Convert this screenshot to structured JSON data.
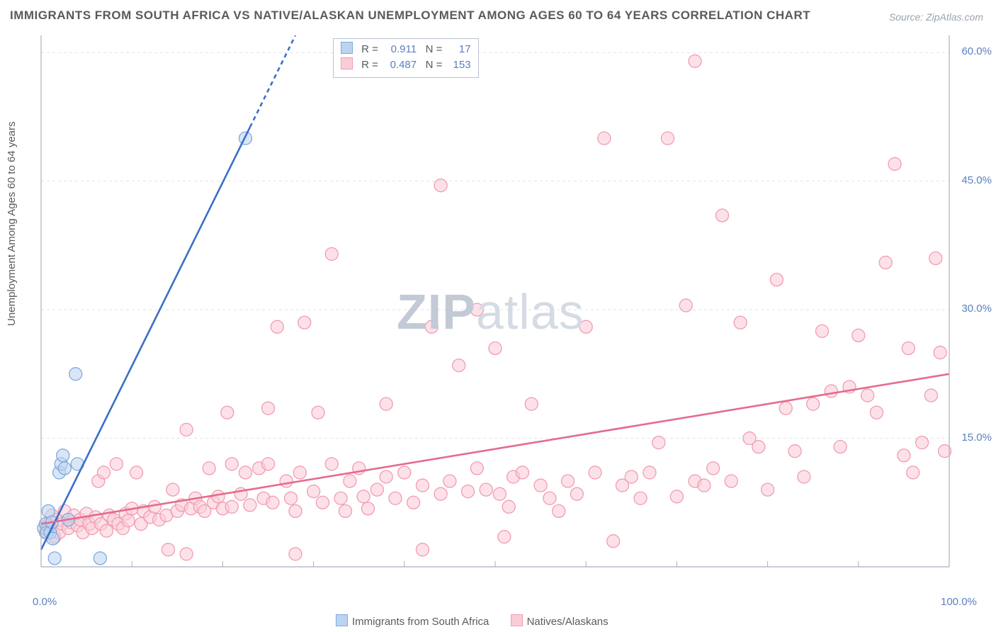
{
  "title": "IMMIGRANTS FROM SOUTH AFRICA VS NATIVE/ALASKAN UNEMPLOYMENT AMONG AGES 60 TO 64 YEARS CORRELATION CHART",
  "source": "Source: ZipAtlas.com",
  "ylabel": "Unemployment Among Ages 60 to 64 years",
  "watermark_a": "ZIP",
  "watermark_b": "atlas",
  "axes": {
    "xmin": 0,
    "xmax": 100,
    "ymin": 0,
    "ymax": 62,
    "xticks": [
      {
        "v": 0,
        "label": "0.0%"
      },
      {
        "v": 100,
        "label": "100.0%"
      }
    ],
    "yticks": [
      {
        "v": 15,
        "label": "15.0%"
      },
      {
        "v": 30,
        "label": "30.0%"
      },
      {
        "v": 45,
        "label": "45.0%"
      },
      {
        "v": 60,
        "label": "60.0%"
      }
    ],
    "xminor": [
      10,
      20,
      30,
      40,
      50,
      60,
      70,
      80,
      90
    ],
    "grid_color": "#e0e4ea",
    "axis_color": "#a9b1be"
  },
  "series": [
    {
      "name": "Immigrants from South Africa",
      "color_fill": "#bcd4f0",
      "color_stroke": "#7fa9dd",
      "line_color": "#3a6fc7",
      "R": "0.911",
      "N": "17",
      "trend": {
        "x1": 0,
        "y1": 2,
        "x2": 28,
        "y2": 62,
        "dash_from_x": 23
      },
      "points": [
        [
          0.3,
          4.5
        ],
        [
          0.5,
          5
        ],
        [
          0.6,
          4
        ],
        [
          0.8,
          6.5
        ],
        [
          1,
          4
        ],
        [
          1.2,
          5.2
        ],
        [
          1.3,
          3.3
        ],
        [
          1.5,
          1
        ],
        [
          2,
          11
        ],
        [
          2.2,
          12
        ],
        [
          2.4,
          13
        ],
        [
          2.6,
          11.5
        ],
        [
          3,
          5.5
        ],
        [
          3.8,
          22.5
        ],
        [
          4,
          12
        ],
        [
          6.5,
          1
        ],
        [
          22.5,
          50
        ]
      ]
    },
    {
      "name": "Natives/Alaskans",
      "color_fill": "#f9cdd7",
      "color_stroke": "#f29bb1",
      "line_color": "#e56b8c",
      "R": "0.487",
      "N": "153",
      "trend": {
        "x1": 0,
        "y1": 5,
        "x2": 100,
        "y2": 22.5
      },
      "points": [
        [
          0.5,
          4
        ],
        [
          0.8,
          5
        ],
        [
          1,
          4.5
        ],
        [
          1.2,
          6
        ],
        [
          1.5,
          3.5
        ],
        [
          1.8,
          5.5
        ],
        [
          2,
          4
        ],
        [
          2.3,
          5
        ],
        [
          2.6,
          6.5
        ],
        [
          3,
          4.5
        ],
        [
          3.3,
          5.2
        ],
        [
          3.6,
          6
        ],
        [
          4,
          4.8
        ],
        [
          4.3,
          5.5
        ],
        [
          4.6,
          4
        ],
        [
          5,
          6.2
        ],
        [
          5.3,
          5
        ],
        [
          5.6,
          4.5
        ],
        [
          6,
          5.8
        ],
        [
          6.3,
          10
        ],
        [
          6.6,
          5
        ],
        [
          6.9,
          11
        ],
        [
          7.2,
          4.2
        ],
        [
          7.5,
          6
        ],
        [
          8,
          5.5
        ],
        [
          8.3,
          12
        ],
        [
          8.5,
          5
        ],
        [
          9,
          4.5
        ],
        [
          9.3,
          6.2
        ],
        [
          9.6,
          5.4
        ],
        [
          10,
          6.8
        ],
        [
          10.5,
          11
        ],
        [
          11,
          5
        ],
        [
          11.3,
          6.5
        ],
        [
          12,
          5.8
        ],
        [
          12.5,
          7
        ],
        [
          13,
          5.5
        ],
        [
          13.8,
          6
        ],
        [
          14,
          2
        ],
        [
          14.5,
          9
        ],
        [
          15,
          6.5
        ],
        [
          15.5,
          7.2
        ],
        [
          16,
          16
        ],
        [
          16,
          1.5
        ],
        [
          16.5,
          6.8
        ],
        [
          17,
          8
        ],
        [
          17.5,
          7
        ],
        [
          18,
          6.5
        ],
        [
          18.5,
          11.5
        ],
        [
          19,
          7.5
        ],
        [
          19.5,
          8.2
        ],
        [
          20,
          6.8
        ],
        [
          20.5,
          18
        ],
        [
          21,
          7
        ],
        [
          21,
          12
        ],
        [
          22,
          8.5
        ],
        [
          22.5,
          11
        ],
        [
          23,
          7.2
        ],
        [
          24,
          11.5
        ],
        [
          24.5,
          8
        ],
        [
          25,
          12
        ],
        [
          25,
          18.5
        ],
        [
          25.5,
          7.5
        ],
        [
          26,
          28
        ],
        [
          27,
          10
        ],
        [
          27.5,
          8
        ],
        [
          28,
          1.5
        ],
        [
          28,
          6.5
        ],
        [
          28.5,
          11
        ],
        [
          29,
          28.5
        ],
        [
          30,
          8.8
        ],
        [
          30.5,
          18
        ],
        [
          31,
          7.5
        ],
        [
          32,
          12
        ],
        [
          32,
          36.5
        ],
        [
          33,
          8
        ],
        [
          33.5,
          6.5
        ],
        [
          34,
          10
        ],
        [
          35,
          11.5
        ],
        [
          35.5,
          8.2
        ],
        [
          36,
          6.8
        ],
        [
          37,
          9
        ],
        [
          38,
          10.5
        ],
        [
          38,
          19
        ],
        [
          39,
          8
        ],
        [
          40,
          11
        ],
        [
          41,
          7.5
        ],
        [
          42,
          9.5
        ],
        [
          42,
          2
        ],
        [
          43,
          28
        ],
        [
          44,
          8.5
        ],
        [
          44,
          44.5
        ],
        [
          45,
          10
        ],
        [
          46,
          23.5
        ],
        [
          47,
          8.8
        ],
        [
          48,
          11.5
        ],
        [
          48,
          30
        ],
        [
          49,
          9
        ],
        [
          50,
          25.5
        ],
        [
          50.5,
          8.5
        ],
        [
          51,
          3.5
        ],
        [
          51.5,
          7
        ],
        [
          52,
          10.5
        ],
        [
          53,
          11
        ],
        [
          54,
          19
        ],
        [
          55,
          9.5
        ],
        [
          56,
          8
        ],
        [
          57,
          6.5
        ],
        [
          58,
          10
        ],
        [
          59,
          8.5
        ],
        [
          60,
          28
        ],
        [
          61,
          11
        ],
        [
          62,
          50
        ],
        [
          63,
          3
        ],
        [
          64,
          9.5
        ],
        [
          65,
          10.5
        ],
        [
          66,
          8
        ],
        [
          67,
          11
        ],
        [
          68,
          14.5
        ],
        [
          69,
          50
        ],
        [
          70,
          8.2
        ],
        [
          71,
          30.5
        ],
        [
          72,
          10
        ],
        [
          72,
          59
        ],
        [
          73,
          9.5
        ],
        [
          74,
          11.5
        ],
        [
          75,
          41
        ],
        [
          76,
          10
        ],
        [
          77,
          28.5
        ],
        [
          78,
          15
        ],
        [
          79,
          14
        ],
        [
          80,
          9
        ],
        [
          81,
          33.5
        ],
        [
          82,
          18.5
        ],
        [
          83,
          13.5
        ],
        [
          84,
          10.5
        ],
        [
          85,
          19
        ],
        [
          86,
          27.5
        ],
        [
          87,
          20.5
        ],
        [
          88,
          14
        ],
        [
          89,
          21
        ],
        [
          90,
          27
        ],
        [
          91,
          20
        ],
        [
          92,
          18
        ],
        [
          93,
          35.5
        ],
        [
          94,
          47
        ],
        [
          95,
          13
        ],
        [
          95.5,
          25.5
        ],
        [
          96,
          11
        ],
        [
          97,
          14.5
        ],
        [
          98,
          20
        ],
        [
          98.5,
          36
        ],
        [
          99,
          25
        ],
        [
          99.5,
          13.5
        ]
      ]
    }
  ],
  "marker": {
    "r": 9,
    "opacity": 0.58,
    "stroke_width": 1.3
  },
  "trend_width": 2.6,
  "xlegend": {
    "label_a": "Immigrants from South Africa",
    "label_b": "Natives/Alaskans"
  },
  "legend_labels": {
    "r": "R =",
    "n": "N ="
  }
}
